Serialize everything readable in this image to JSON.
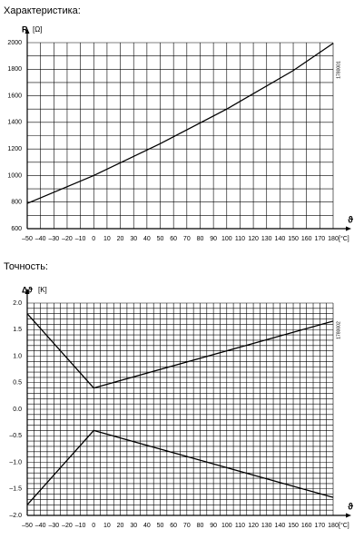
{
  "chart_data": [
    {
      "type": "line",
      "title": "Характеристика:",
      "y_label": "R",
      "y_unit": "[Ω]",
      "x_label": "ϑ",
      "x_unit": "[°C]",
      "code": "1780001",
      "x": [
        -50,
        0,
        50,
        100,
        150,
        180
      ],
      "series": [
        {
          "name": "R",
          "color": "#000000",
          "values": [
            790,
            1000,
            1240,
            1500,
            1790,
            1995
          ]
        }
      ],
      "xlim": [
        -50,
        180
      ],
      "xticks": [
        {
          "value": -50,
          "label": "–50"
        },
        {
          "value": -40,
          "label": "–40"
        },
        {
          "value": -30,
          "label": "–30"
        },
        {
          "value": -20,
          "label": "–20"
        },
        {
          "value": -10,
          "label": "–10"
        },
        0,
        10,
        20,
        30,
        40,
        50,
        60,
        70,
        80,
        90,
        100,
        110,
        120,
        130,
        140,
        150,
        160,
        170,
        180
      ],
      "ylim": [
        600,
        2000
      ],
      "yticks": [
        600,
        800,
        1000,
        1200,
        1400,
        1600,
        1800,
        2000
      ],
      "grid": true,
      "minor_grid": {
        "x": 1,
        "y": 2
      }
    },
    {
      "type": "line",
      "title": "Точность:",
      "y_label": "Δϑ",
      "y_unit": "[K]",
      "x_label": "ϑ",
      "x_unit": "[°C]",
      "code": "1780002",
      "x": [
        -50,
        0,
        180
      ],
      "series": [
        {
          "name": "+Δϑ",
          "color": "#000000",
          "values": [
            1.8,
            0.4,
            1.66
          ]
        },
        {
          "name": "−Δϑ",
          "color": "#000000",
          "values": [
            -1.8,
            -0.4,
            -1.66
          ]
        }
      ],
      "xlim": [
        -50,
        180
      ],
      "xticks": [
        {
          "value": -50,
          "label": "–50"
        },
        {
          "value": -40,
          "label": "–40"
        },
        {
          "value": -30,
          "label": "–30"
        },
        {
          "value": -20,
          "label": "–20"
        },
        {
          "value": -10,
          "label": "–10"
        },
        0,
        10,
        20,
        30,
        40,
        50,
        60,
        70,
        80,
        90,
        100,
        110,
        120,
        130,
        140,
        150,
        160,
        170,
        180
      ],
      "ylim": [
        -2,
        2
      ],
      "yticks": [
        {
          "value": -2,
          "label": "–2.0"
        },
        {
          "value": -1.5,
          "label": "–1.5"
        },
        {
          "value": -1,
          "label": "–1.0"
        },
        {
          "value": -0.5,
          "label": "–0.5"
        },
        {
          "value": 0,
          "label": "0.0"
        },
        0.5,
        {
          "value": 1,
          "label": "1.0"
        },
        1.5,
        {
          "value": 2,
          "label": "2.0"
        }
      ],
      "grid": true,
      "minor_grid": {
        "x": 2,
        "y": 5
      }
    }
  ]
}
